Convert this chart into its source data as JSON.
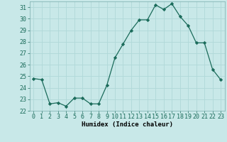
{
  "x": [
    0,
    1,
    2,
    3,
    4,
    5,
    6,
    7,
    8,
    9,
    10,
    11,
    12,
    13,
    14,
    15,
    16,
    17,
    18,
    19,
    20,
    21,
    22,
    23
  ],
  "y": [
    24.8,
    24.7,
    22.6,
    22.7,
    22.4,
    23.1,
    23.1,
    22.6,
    22.6,
    24.2,
    26.6,
    27.8,
    29.0,
    29.9,
    29.9,
    31.2,
    30.8,
    31.3,
    30.2,
    29.4,
    27.9,
    27.9,
    25.6,
    24.7
  ],
  "line_color": "#1a6b5a",
  "marker_color": "#1a6b5a",
  "bg_color": "#c8e8e8",
  "grid_color": "#b0d8d8",
  "xlabel": "Humidex (Indice chaleur)",
  "ylim": [
    22,
    31.5
  ],
  "xlim": [
    -0.5,
    23.5
  ],
  "yticks": [
    22,
    23,
    24,
    25,
    26,
    27,
    28,
    29,
    30,
    31
  ],
  "xticks": [
    0,
    1,
    2,
    3,
    4,
    5,
    6,
    7,
    8,
    9,
    10,
    11,
    12,
    13,
    14,
    15,
    16,
    17,
    18,
    19,
    20,
    21,
    22,
    23
  ],
  "label_fontsize": 6.5,
  "tick_fontsize": 6.0
}
